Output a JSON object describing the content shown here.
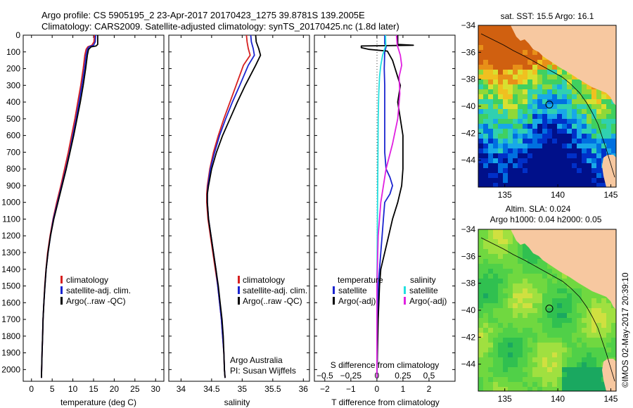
{
  "header": {
    "line1": "Argo profile: CS 5905195_2 23-Apr-2017 20170423_1275 39.8781S 139.2005E",
    "line2": "Climatology: CARS2009. Satellite-adjusted climatology: synTS_20170425.nc (1.8d later)"
  },
  "credit": {
    "line1": "Argo Australia",
    "line2": "PI: Susan Wijffels"
  },
  "copyright": "©IMOS 02-May-2017 20:39:10",
  "colors": {
    "climatology": "#d62020",
    "satellite": "#1a24d0",
    "argo": "#000000",
    "sal_satellite": "#22e0e0",
    "sal_argo": "#e020e0",
    "land": "#f7c8a0"
  },
  "chart_data": [
    {
      "type": "line",
      "id": "temperature-profile",
      "xlabel": "temperature (deg C)",
      "ylabel": "",
      "xlim": [
        -2,
        32
      ],
      "ylim": [
        2070,
        0
      ],
      "xticks": [
        0,
        5,
        10,
        15,
        20,
        25,
        30
      ],
      "yticks": [
        0,
        100,
        200,
        300,
        400,
        500,
        600,
        700,
        800,
        900,
        1000,
        1100,
        1200,
        1300,
        1400,
        1500,
        1600,
        1700,
        1800,
        1900,
        2000
      ],
      "legend": [
        "climatology",
        "satellite-adj. clim.",
        "Argo(..raw -QC)"
      ],
      "series": [
        {
          "name": "climatology",
          "color_key": "climatology",
          "points": [
            [
              15.2,
              0
            ],
            [
              15.1,
              40
            ],
            [
              14.6,
              60
            ],
            [
              13.6,
              70
            ],
            [
              13.2,
              85
            ],
            [
              12.9,
              120
            ],
            [
              12.5,
              200
            ],
            [
              11.9,
              300
            ],
            [
              11.2,
              400
            ],
            [
              10.5,
              500
            ],
            [
              9.7,
              600
            ],
            [
              8.9,
              700
            ],
            [
              8.0,
              800
            ],
            [
              7.1,
              900
            ],
            [
              6.1,
              1000
            ],
            [
              5.2,
              1100
            ],
            [
              4.5,
              1200
            ],
            [
              3.9,
              1300
            ],
            [
              3.5,
              1400
            ],
            [
              3.2,
              1500
            ],
            [
              3.0,
              1600
            ],
            [
              2.8,
              1700
            ],
            [
              2.7,
              1800
            ],
            [
              2.55,
              1900
            ],
            [
              2.45,
              2000
            ],
            [
              2.4,
              2050
            ]
          ]
        },
        {
          "name": "satellite-adj. clim.",
          "color_key": "satellite",
          "points": [
            [
              15.5,
              0
            ],
            [
              15.4,
              40
            ],
            [
              15.0,
              60
            ],
            [
              13.9,
              70
            ],
            [
              13.5,
              85
            ],
            [
              13.2,
              120
            ],
            [
              12.8,
              200
            ],
            [
              12.2,
              300
            ],
            [
              11.5,
              400
            ],
            [
              10.8,
              500
            ],
            [
              10.0,
              600
            ],
            [
              9.2,
              700
            ],
            [
              8.3,
              800
            ],
            [
              7.3,
              900
            ],
            [
              6.3,
              1000
            ],
            [
              5.3,
              1100
            ],
            [
              4.6,
              1200
            ],
            [
              4.0,
              1300
            ],
            [
              3.55,
              1400
            ],
            [
              3.25,
              1500
            ],
            [
              3.0,
              1600
            ],
            [
              2.8,
              1700
            ],
            [
              2.7,
              1800
            ],
            [
              2.55,
              1900
            ],
            [
              2.45,
              2000
            ],
            [
              2.4,
              2050
            ]
          ]
        },
        {
          "name": "Argo(..raw -QC)",
          "color_key": "argo",
          "points": [
            [
              16.0,
              0
            ],
            [
              16.0,
              55
            ],
            [
              15.6,
              65
            ],
            [
              14.4,
              70
            ],
            [
              13.8,
              85
            ],
            [
              13.5,
              120
            ],
            [
              13.1,
              200
            ],
            [
              12.5,
              300
            ],
            [
              11.8,
              400
            ],
            [
              11.0,
              500
            ],
            [
              10.2,
              600
            ],
            [
              9.3,
              700
            ],
            [
              8.4,
              800
            ],
            [
              7.4,
              900
            ],
            [
              6.4,
              1000
            ],
            [
              5.4,
              1100
            ],
            [
              4.6,
              1200
            ],
            [
              4.0,
              1300
            ],
            [
              3.55,
              1400
            ],
            [
              3.25,
              1500
            ],
            [
              3.0,
              1600
            ],
            [
              2.8,
              1700
            ],
            [
              2.7,
              1800
            ],
            [
              2.55,
              1900
            ],
            [
              2.45,
              2000
            ],
            [
              2.4,
              2050
            ]
          ]
        }
      ]
    },
    {
      "type": "line",
      "id": "salinity-profile",
      "xlabel": "salinity",
      "ylabel": "",
      "xlim": [
        33.8,
        36.1
      ],
      "ylim": [
        2070,
        0
      ],
      "xticks": [
        34,
        34.5,
        35,
        35.5,
        36
      ],
      "legend": [
        "climatology",
        "satellite-adj. clim.",
        "Argo(..raw -QC)"
      ],
      "series": [
        {
          "name": "climatology",
          "color_key": "climatology",
          "points": [
            [
              35.07,
              0
            ],
            [
              35.08,
              40
            ],
            [
              35.1,
              80
            ],
            [
              35.13,
              120
            ],
            [
              35.02,
              180
            ],
            [
              34.9,
              300
            ],
            [
              34.8,
              400
            ],
            [
              34.7,
              500
            ],
            [
              34.61,
              600
            ],
            [
              34.53,
              700
            ],
            [
              34.47,
              800
            ],
            [
              34.43,
              900
            ],
            [
              34.42,
              950
            ],
            [
              34.42,
              1000
            ],
            [
              34.44,
              1100
            ],
            [
              34.48,
              1200
            ],
            [
              34.52,
              1300
            ],
            [
              34.56,
              1400
            ],
            [
              34.6,
              1500
            ],
            [
              34.63,
              1600
            ],
            [
              34.66,
              1700
            ],
            [
              34.68,
              1800
            ],
            [
              34.7,
              1900
            ],
            [
              34.71,
              2000
            ],
            [
              34.72,
              2050
            ]
          ]
        },
        {
          "name": "satellite-adj. clim.",
          "color_key": "satellite",
          "points": [
            [
              35.14,
              0
            ],
            [
              35.15,
              40
            ],
            [
              35.18,
              80
            ],
            [
              35.2,
              120
            ],
            [
              35.1,
              180
            ],
            [
              34.96,
              300
            ],
            [
              34.84,
              400
            ],
            [
              34.73,
              500
            ],
            [
              34.63,
              600
            ],
            [
              34.55,
              700
            ],
            [
              34.48,
              800
            ],
            [
              34.44,
              900
            ],
            [
              34.43,
              950
            ],
            [
              34.43,
              1000
            ],
            [
              34.45,
              1100
            ],
            [
              34.49,
              1200
            ],
            [
              34.53,
              1300
            ],
            [
              34.57,
              1400
            ],
            [
              34.6,
              1500
            ],
            [
              34.63,
              1600
            ],
            [
              34.66,
              1700
            ],
            [
              34.68,
              1800
            ],
            [
              34.7,
              1900
            ],
            [
              34.71,
              2000
            ],
            [
              34.72,
              2050
            ]
          ]
        },
        {
          "name": "Argo(..raw -QC)",
          "color_key": "argo",
          "points": [
            [
              35.22,
              0
            ],
            [
              35.23,
              40
            ],
            [
              35.27,
              80
            ],
            [
              35.3,
              120
            ],
            [
              35.22,
              180
            ],
            [
              35.05,
              300
            ],
            [
              34.92,
              400
            ],
            [
              34.8,
              500
            ],
            [
              34.68,
              600
            ],
            [
              34.58,
              700
            ],
            [
              34.5,
              800
            ],
            [
              34.45,
              900
            ],
            [
              34.43,
              950
            ],
            [
              34.43,
              1000
            ],
            [
              34.45,
              1100
            ],
            [
              34.49,
              1200
            ],
            [
              34.53,
              1300
            ],
            [
              34.57,
              1400
            ],
            [
              34.61,
              1500
            ],
            [
              34.64,
              1600
            ],
            [
              34.67,
              1700
            ],
            [
              34.69,
              1800
            ],
            [
              34.7,
              1900
            ],
            [
              34.71,
              2000
            ],
            [
              34.72,
              2050
            ]
          ]
        }
      ]
    },
    {
      "type": "line",
      "id": "difference-profile",
      "xlabel": "T difference from climatology",
      "xlabel_top": "S difference from climatology",
      "xlim": [
        -2.4,
        3.0
      ],
      "ylim": [
        2070,
        0
      ],
      "xticks": [
        -2,
        -1,
        0,
        1,
        2
      ],
      "xticks_s": [
        -0.5,
        -0.25,
        0,
        0.25,
        0.5
      ],
      "legend_t_title": "temperature",
      "legend_s_title": "salinity",
      "legend_t": [
        "satellite",
        "Argo(-adj)"
      ],
      "legend_s": [
        "satellite",
        "Argo(-adj)"
      ],
      "series": [
        {
          "name": "T satellite",
          "color_key": "satellite",
          "points": [
            [
              0.3,
              0
            ],
            [
              0.3,
              50
            ],
            [
              0.35,
              70
            ],
            [
              0.3,
              100
            ],
            [
              0.28,
              200
            ],
            [
              0.3,
              300
            ],
            [
              0.3,
              400
            ],
            [
              0.3,
              500
            ],
            [
              0.3,
              600
            ],
            [
              0.3,
              700
            ],
            [
              0.35,
              800
            ],
            [
              0.5,
              850
            ],
            [
              0.6,
              900
            ],
            [
              0.5,
              950
            ],
            [
              0.3,
              1000
            ],
            [
              0.25,
              1100
            ],
            [
              0.2,
              1200
            ],
            [
              0.15,
              1300
            ],
            [
              0.1,
              1400
            ],
            [
              0.05,
              1500
            ],
            [
              0.03,
              1700
            ],
            [
              0.0,
              2050
            ]
          ]
        },
        {
          "name": "T Argo",
          "color_key": "argo",
          "points": [
            [
              0.8,
              0
            ],
            [
              0.8,
              55
            ],
            [
              1.4,
              60
            ],
            [
              -0.6,
              65
            ],
            [
              -0.6,
              75
            ],
            [
              -0.3,
              85
            ],
            [
              0.4,
              95
            ],
            [
              0.6,
              150
            ],
            [
              0.7,
              200
            ],
            [
              0.9,
              300
            ],
            [
              0.8,
              400
            ],
            [
              0.9,
              500
            ],
            [
              1.0,
              600
            ],
            [
              1.0,
              700
            ],
            [
              1.0,
              800
            ],
            [
              0.95,
              900
            ],
            [
              0.8,
              1000
            ],
            [
              0.6,
              1100
            ],
            [
              0.45,
              1200
            ],
            [
              0.3,
              1300
            ],
            [
              0.15,
              1400
            ],
            [
              0.1,
              1500
            ],
            [
              0.05,
              1700
            ],
            [
              0.0,
              2050
            ]
          ]
        },
        {
          "name": "S satellite",
          "color_key": "sal_satellite",
          "points": [
            [
              0.33,
              0
            ],
            [
              0.34,
              60
            ],
            [
              0.3,
              80
            ],
            [
              0.22,
              120
            ],
            [
              0.15,
              180
            ],
            [
              0.1,
              250
            ],
            [
              0.07,
              350
            ],
            [
              0.05,
              500
            ],
            [
              0.04,
              700
            ],
            [
              0.03,
              900
            ],
            [
              0.02,
              1100
            ],
            [
              0.01,
              1300
            ],
            [
              0.0,
              1500
            ],
            [
              0.0,
              2050
            ]
          ]
        },
        {
          "name": "S Argo",
          "color_key": "sal_argo",
          "points": [
            [
              0.75,
              0
            ],
            [
              0.78,
              60
            ],
            [
              0.82,
              80
            ],
            [
              0.9,
              120
            ],
            [
              0.95,
              180
            ],
            [
              0.85,
              250
            ],
            [
              0.88,
              350
            ],
            [
              0.8,
              500
            ],
            [
              0.6,
              650
            ],
            [
              0.35,
              800
            ],
            [
              0.15,
              1000
            ],
            [
              0.05,
              1200
            ],
            [
              0.0,
              1500
            ],
            [
              0.0,
              2050
            ]
          ]
        }
      ]
    },
    {
      "type": "heatmap",
      "id": "sst-map",
      "title": "sat. SST: 15.5 Argo: 16.1",
      "xlim": [
        132.5,
        145.5
      ],
      "ylim": [
        -46,
        -34
      ],
      "xticks": [
        135,
        140,
        145
      ],
      "yticks": [
        -34,
        -36,
        -38,
        -40,
        -42,
        -44
      ],
      "float_position": [
        139.2005,
        -39.8781
      ]
    },
    {
      "type": "heatmap",
      "id": "sla-map",
      "title": "Altim. SLA: 0.024",
      "subtitle": "Argo h1000: 0.04 h2000: 0.05",
      "xlim": [
        132.5,
        145.5
      ],
      "ylim": [
        -46,
        -34
      ],
      "xticks": [
        135,
        140,
        145
      ],
      "yticks": [
        -34,
        -36,
        -38,
        -40,
        -42,
        -44
      ],
      "float_position": [
        139.2005,
        -39.8781
      ]
    }
  ]
}
